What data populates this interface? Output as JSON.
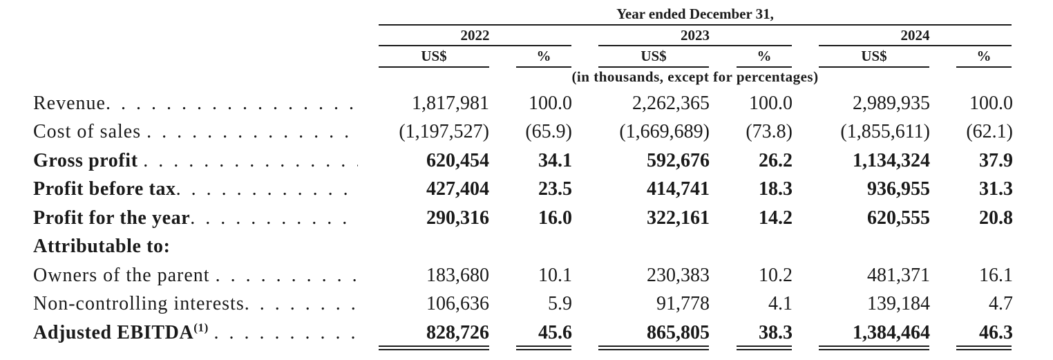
{
  "header": {
    "period": "Year ended December 31,",
    "years": [
      "2022",
      "2023",
      "2024"
    ],
    "col_usd": "US$",
    "col_pct": "%",
    "units_note": "(in thousands, except for percentages)"
  },
  "rows": [
    {
      "label": "Revenue",
      "dots": ". . . . . . . . . . . . . . . . . . . . .",
      "bold": false,
      "values": [
        "1,817,981",
        "100.0",
        "2,262,365",
        "100.0",
        "2,989,935",
        "100.0"
      ]
    },
    {
      "label": "Cost of sales",
      "dots": ". . . . . . . . . . . . . . . . . .",
      "bold": false,
      "values": [
        "(1,197,527)",
        "(65.9)",
        "(1,669,689)",
        "(73.8)",
        "(1,855,611)",
        "(62.1)"
      ]
    },
    {
      "label": "Gross profit",
      "dots": ". . . . . . . . . . . . . . . . . . .",
      "bold": true,
      "values": [
        "620,454",
        "34.1",
        "592,676",
        "26.2",
        "1,134,324",
        "37.9"
      ]
    },
    {
      "label": "Profit before tax",
      "dots": ". . . . . . . . . . . . . . .",
      "bold": true,
      "values": [
        "427,404",
        "23.5",
        "414,741",
        "18.3",
        "936,955",
        "31.3"
      ]
    },
    {
      "label": "Profit for the year",
      "dots": ". . . . . . . . . . . . . . .",
      "bold": true,
      "values": [
        "290,316",
        "16.0",
        "322,161",
        "14.2",
        "620,555",
        "20.8"
      ]
    },
    {
      "label": "Attributable to:",
      "dots": "",
      "bold": true,
      "values": [
        "",
        "",
        "",
        "",
        "",
        ""
      ]
    },
    {
      "label": "Owners of the parent",
      "dots": ". . . . . . . . . . . .",
      "bold": false,
      "values": [
        "183,680",
        "10.1",
        "230,383",
        "10.2",
        "481,371",
        "16.1"
      ]
    },
    {
      "label": "Non-controlling interests",
      "dots": ". . . . . . . . .",
      "bold": false,
      "values": [
        "106,636",
        "5.9",
        "91,778",
        "4.1",
        "139,184",
        "4.7"
      ]
    },
    {
      "label": "Adjusted EBITDA",
      "sup": "(1)",
      "dots": ". . . . . . . . . . . . . .",
      "bold": true,
      "values": [
        "828,726",
        "45.6",
        "865,805",
        "38.3",
        "1,384,464",
        "46.3"
      ]
    }
  ]
}
